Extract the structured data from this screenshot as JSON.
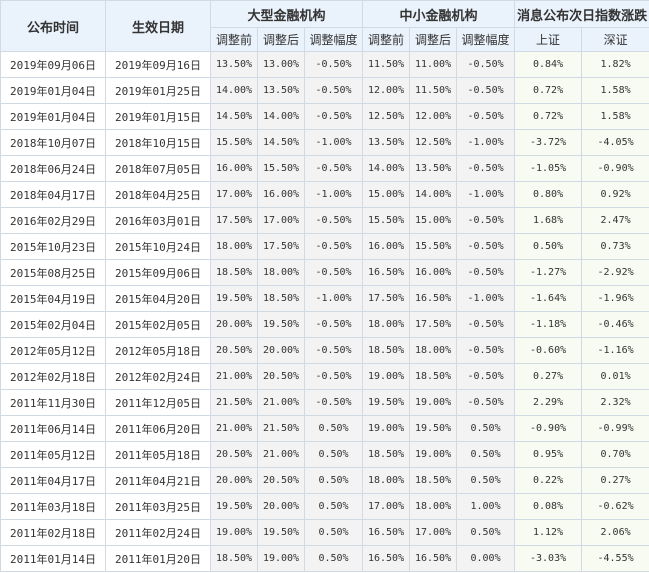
{
  "headers": {
    "announce_date": "公布时间",
    "effective_date": "生效日期",
    "large_inst": "大型金融机构",
    "small_inst": "中小金融机构",
    "index_change": "消息公布次日指数涨跌",
    "before": "调整前",
    "after": "调整后",
    "range": "调整幅度",
    "shanghai": "上证",
    "shenzhen": "深证"
  },
  "colors": {
    "header_bg": "#eaf2fb",
    "border": "#d0d9e4",
    "positive": "#e00000",
    "negative": "#1f9a1f"
  },
  "rows": [
    {
      "announce": "2019年09月06日",
      "effective": "2019年09月16日",
      "lb": "13.50%",
      "la": "13.00%",
      "lr": "-0.50%",
      "sb": "11.50%",
      "sa": "11.00%",
      "sr": "-0.50%",
      "sh": "0.84%",
      "sz": "1.82%"
    },
    {
      "announce": "2019年01月04日",
      "effective": "2019年01月25日",
      "lb": "14.00%",
      "la": "13.50%",
      "lr": "-0.50%",
      "sb": "12.00%",
      "sa": "11.50%",
      "sr": "-0.50%",
      "sh": "0.72%",
      "sz": "1.58%"
    },
    {
      "announce": "2019年01月04日",
      "effective": "2019年01月15日",
      "lb": "14.50%",
      "la": "14.00%",
      "lr": "-0.50%",
      "sb": "12.50%",
      "sa": "12.00%",
      "sr": "-0.50%",
      "sh": "0.72%",
      "sz": "1.58%"
    },
    {
      "announce": "2018年10月07日",
      "effective": "2018年10月15日",
      "lb": "15.50%",
      "la": "14.50%",
      "lr": "-1.00%",
      "sb": "13.50%",
      "sa": "12.50%",
      "sr": "-1.00%",
      "sh": "-3.72%",
      "sz": "-4.05%"
    },
    {
      "announce": "2018年06月24日",
      "effective": "2018年07月05日",
      "lb": "16.00%",
      "la": "15.50%",
      "lr": "-0.50%",
      "sb": "14.00%",
      "sa": "13.50%",
      "sr": "-0.50%",
      "sh": "-1.05%",
      "sz": "-0.90%"
    },
    {
      "announce": "2018年04月17日",
      "effective": "2018年04月25日",
      "lb": "17.00%",
      "la": "16.00%",
      "lr": "-1.00%",
      "sb": "15.00%",
      "sa": "14.00%",
      "sr": "-1.00%",
      "sh": "0.80%",
      "sz": "0.92%"
    },
    {
      "announce": "2016年02月29日",
      "effective": "2016年03月01日",
      "lb": "17.50%",
      "la": "17.00%",
      "lr": "-0.50%",
      "sb": "15.50%",
      "sa": "15.00%",
      "sr": "-0.50%",
      "sh": "1.68%",
      "sz": "2.47%"
    },
    {
      "announce": "2015年10月23日",
      "effective": "2015年10月24日",
      "lb": "18.00%",
      "la": "17.50%",
      "lr": "-0.50%",
      "sb": "16.00%",
      "sa": "15.50%",
      "sr": "-0.50%",
      "sh": "0.50%",
      "sz": "0.73%"
    },
    {
      "announce": "2015年08月25日",
      "effective": "2015年09月06日",
      "lb": "18.50%",
      "la": "18.00%",
      "lr": "-0.50%",
      "sb": "16.50%",
      "sa": "16.00%",
      "sr": "-0.50%",
      "sh": "-1.27%",
      "sz": "-2.92%"
    },
    {
      "announce": "2015年04月19日",
      "effective": "2015年04月20日",
      "lb": "19.50%",
      "la": "18.50%",
      "lr": "-1.00%",
      "sb": "17.50%",
      "sa": "16.50%",
      "sr": "-1.00%",
      "sh": "-1.64%",
      "sz": "-1.96%"
    },
    {
      "announce": "2015年02月04日",
      "effective": "2015年02月05日",
      "lb": "20.00%",
      "la": "19.50%",
      "lr": "-0.50%",
      "sb": "18.00%",
      "sa": "17.50%",
      "sr": "-0.50%",
      "sh": "-1.18%",
      "sz": "-0.46%"
    },
    {
      "announce": "2012年05月12日",
      "effective": "2012年05月18日",
      "lb": "20.50%",
      "la": "20.00%",
      "lr": "-0.50%",
      "sb": "18.50%",
      "sa": "18.00%",
      "sr": "-0.50%",
      "sh": "-0.60%",
      "sz": "-1.16%"
    },
    {
      "announce": "2012年02月18日",
      "effective": "2012年02月24日",
      "lb": "21.00%",
      "la": "20.50%",
      "lr": "-0.50%",
      "sb": "19.00%",
      "sa": "18.50%",
      "sr": "-0.50%",
      "sh": "0.27%",
      "sz": "0.01%"
    },
    {
      "announce": "2011年11月30日",
      "effective": "2011年12月05日",
      "lb": "21.50%",
      "la": "21.00%",
      "lr": "-0.50%",
      "sb": "19.50%",
      "sa": "19.00%",
      "sr": "-0.50%",
      "sh": "2.29%",
      "sz": "2.32%"
    },
    {
      "announce": "2011年06月14日",
      "effective": "2011年06月20日",
      "lb": "21.00%",
      "la": "21.50%",
      "lr": "0.50%",
      "sb": "19.00%",
      "sa": "19.50%",
      "sr": "0.50%",
      "sh": "-0.90%",
      "sz": "-0.99%"
    },
    {
      "announce": "2011年05月12日",
      "effective": "2011年05月18日",
      "lb": "20.50%",
      "la": "21.00%",
      "lr": "0.50%",
      "sb": "18.50%",
      "sa": "19.00%",
      "sr": "0.50%",
      "sh": "0.95%",
      "sz": "0.70%"
    },
    {
      "announce": "2011年04月17日",
      "effective": "2011年04月21日",
      "lb": "20.00%",
      "la": "20.50%",
      "lr": "0.50%",
      "sb": "18.00%",
      "sa": "18.50%",
      "sr": "0.50%",
      "sh": "0.22%",
      "sz": "0.27%"
    },
    {
      "announce": "2011年03月18日",
      "effective": "2011年03月25日",
      "lb": "19.50%",
      "la": "20.00%",
      "lr": "0.50%",
      "sb": "17.00%",
      "sa": "18.00%",
      "sr": "1.00%",
      "sh": "0.08%",
      "sz": "-0.62%"
    },
    {
      "announce": "2011年02月18日",
      "effective": "2011年02月24日",
      "lb": "19.00%",
      "la": "19.50%",
      "lr": "0.50%",
      "sb": "16.50%",
      "sa": "17.00%",
      "sr": "0.50%",
      "sh": "1.12%",
      "sz": "2.06%"
    },
    {
      "announce": "2011年01月14日",
      "effective": "2011年01月20日",
      "lb": "18.50%",
      "la": "19.00%",
      "lr": "0.50%",
      "sb": "16.50%",
      "sa": "16.50%",
      "sr": "0.00%",
      "sh": "-3.03%",
      "sz": "-4.55%"
    }
  ]
}
